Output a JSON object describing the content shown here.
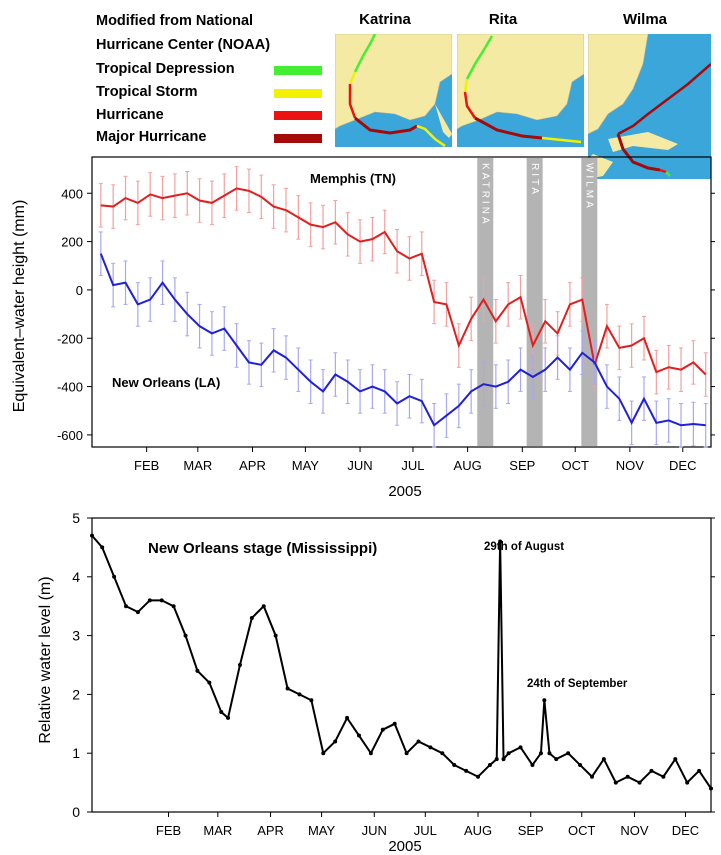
{
  "legend": {
    "title_line1": "Modified from National",
    "title_line2": "Hurricane Center (NOAA)",
    "items": [
      {
        "label": "Tropical Depression",
        "color": "#44ee33"
      },
      {
        "label": "Tropical Storm",
        "color": "#f2f200"
      },
      {
        "label": "Hurricane",
        "color": "#ee1111"
      },
      {
        "label": "Major Hurricane",
        "color": "#a50a0a"
      }
    ]
  },
  "maps": [
    {
      "title": "Katrina"
    },
    {
      "title": "Rita"
    },
    {
      "title": "Wilma"
    }
  ],
  "colors": {
    "memphis": "#e02020",
    "memphis_bars": "#f2a0a0",
    "new_orleans": "#2020d8",
    "new_orleans_bars": "#a8a8f0",
    "hurricane_band": "#b4b4b4",
    "land": "#f5eaa4",
    "sea": "#3aa6da"
  },
  "chart_data": [
    {
      "type": "line",
      "ylabel": "Equivalent–water height (mm)",
      "xlabel": "2005",
      "xticks": [
        "FEB",
        "MAR",
        "APR",
        "MAY",
        "JUN",
        "JUL",
        "AUG",
        "SEP",
        "OCT",
        "NOV",
        "DEC"
      ],
      "ylim": [
        -650,
        550
      ],
      "yticks": [
        400,
        200,
        0,
        -200,
        -400,
        -600
      ],
      "bands": [
        "KATRINA",
        "RITA",
        "WILMA"
      ],
      "series": [
        {
          "name": "Memphis (TN)",
          "x": [
            "Jan 20",
            "Jan 27",
            "Feb 3",
            "Feb 10",
            "Feb 17",
            "Feb 24",
            "Mar 3",
            "Mar 10",
            "Mar 17",
            "Mar 24",
            "Mar 31",
            "Apr 7",
            "Apr 14",
            "Apr 21",
            "Apr 28",
            "May 5",
            "May 12",
            "May 19",
            "May 26",
            "Jun 2",
            "Jun 9",
            "Jun 16",
            "Jun 23",
            "Jun 30",
            "Jul 7",
            "Jul 14",
            "Jul 21",
            "Jul 28",
            "Aug 4",
            "Aug 11",
            "Aug 18",
            "Aug 25",
            "Sep 1",
            "Sep 8",
            "Sep 15",
            "Sep 22",
            "Sep 29",
            "Oct 6",
            "Oct 13",
            "Oct 20",
            "Oct 27",
            "Nov 3",
            "Nov 10",
            "Nov 17",
            "Nov 24",
            "Dec 1",
            "Dec 8",
            "Dec 15",
            "Dec 22",
            "Dec 29"
          ],
          "values": [
            350,
            345,
            380,
            360,
            395,
            380,
            390,
            400,
            370,
            360,
            390,
            420,
            410,
            385,
            345,
            330,
            300,
            270,
            260,
            280,
            230,
            200,
            210,
            240,
            160,
            130,
            150,
            -50,
            -60,
            -230,
            -120,
            -40,
            -130,
            -60,
            -30,
            -230,
            -130,
            -180,
            -60,
            -40,
            -310,
            -150,
            -240,
            -230,
            -200,
            -340,
            -320,
            -330,
            -300,
            -350
          ],
          "error": 90
        },
        {
          "name": "New Orleans (LA)",
          "x": [
            "Jan 20",
            "Jan 27",
            "Feb 3",
            "Feb 10",
            "Feb 17",
            "Feb 24",
            "Mar 3",
            "Mar 10",
            "Mar 17",
            "Mar 24",
            "Mar 31",
            "Apr 7",
            "Apr 14",
            "Apr 21",
            "Apr 28",
            "May 5",
            "May 12",
            "May 19",
            "May 26",
            "Jun 2",
            "Jun 9",
            "Jun 16",
            "Jun 23",
            "Jun 30",
            "Jul 7",
            "Jul 14",
            "Jul 21",
            "Jul 28",
            "Aug 4",
            "Aug 11",
            "Aug 18",
            "Aug 25",
            "Sep 1",
            "Sep 8",
            "Sep 15",
            "Sep 22",
            "Sep 29",
            "Oct 6",
            "Oct 13",
            "Oct 20",
            "Oct 27",
            "Nov 3",
            "Nov 10",
            "Nov 17",
            "Nov 24",
            "Dec 1",
            "Dec 8",
            "Dec 15",
            "Dec 22",
            "Dec 29"
          ],
          "values": [
            150,
            20,
            30,
            -60,
            -40,
            30,
            -40,
            -100,
            -150,
            -180,
            -160,
            -230,
            -300,
            -310,
            -250,
            -280,
            -330,
            -380,
            -420,
            -350,
            -380,
            -420,
            -400,
            -420,
            -470,
            -440,
            -460,
            -560,
            -520,
            -480,
            -420,
            -390,
            -400,
            -380,
            -330,
            -360,
            -330,
            -280,
            -330,
            -260,
            -300,
            -400,
            -450,
            -550,
            -450,
            -550,
            -540,
            -560,
            -555,
            -560
          ],
          "error": 90
        }
      ]
    },
    {
      "type": "line",
      "title": "New Orleans stage (Mississippi)",
      "ylabel": "Relative water level (m)",
      "xlabel": "2005",
      "xticks": [
        "FEB",
        "MAR",
        "APR",
        "MAY",
        "JUN",
        "JUL",
        "AUG",
        "SEP",
        "OCT",
        "NOV",
        "DEC"
      ],
      "ylim": [
        0,
        5
      ],
      "yticks": [
        0,
        1,
        2,
        3,
        4,
        5
      ],
      "annotations": [
        "29th of August",
        "24th of September"
      ],
      "series": [
        {
          "x": [
            "Jan 1",
            "Jan 7",
            "Jan 14",
            "Jan 21",
            "Jan 28",
            "Feb 4",
            "Feb 11",
            "Feb 18",
            "Feb 25",
            "Mar 4",
            "Mar 11",
            "Mar 18",
            "Mar 22",
            "Mar 29",
            "Apr 5",
            "Apr 12",
            "Apr 19",
            "Apr 26",
            "May 3",
            "May 10",
            "May 17",
            "May 24",
            "May 31",
            "Jun 7",
            "Jun 14",
            "Jun 21",
            "Jun 28",
            "Jul 5",
            "Jul 12",
            "Jul 19",
            "Jul 26",
            "Aug 2",
            "Aug 9",
            "Aug 16",
            "Aug 23",
            "Aug 27",
            "Aug 29",
            "Aug 31",
            "Sep 3",
            "Sep 10",
            "Sep 17",
            "Sep 22",
            "Sep 24",
            "Sep 27",
            "Oct 1",
            "Oct 8",
            "Oct 15",
            "Oct 22",
            "Oct 29",
            "Nov 5",
            "Nov 12",
            "Nov 19",
            "Nov 26",
            "Dec 3",
            "Dec 10",
            "Dec 17",
            "Dec 24",
            "Dec 31"
          ],
          "values": [
            4.7,
            4.5,
            4.0,
            3.5,
            3.4,
            3.6,
            3.6,
            3.5,
            3.0,
            2.4,
            2.2,
            1.7,
            1.6,
            2.5,
            3.3,
            3.5,
            3.0,
            2.1,
            2.0,
            1.9,
            1.0,
            1.2,
            1.6,
            1.3,
            1.0,
            1.4,
            1.5,
            1.0,
            1.2,
            1.1,
            1.0,
            0.8,
            0.7,
            0.6,
            0.8,
            0.9,
            4.6,
            0.9,
            1.0,
            1.1,
            0.8,
            1.0,
            1.9,
            1.0,
            0.9,
            1.0,
            0.8,
            0.6,
            0.9,
            0.5,
            0.6,
            0.5,
            0.7,
            0.6,
            0.9,
            0.5,
            0.7,
            0.4
          ]
        }
      ]
    }
  ]
}
